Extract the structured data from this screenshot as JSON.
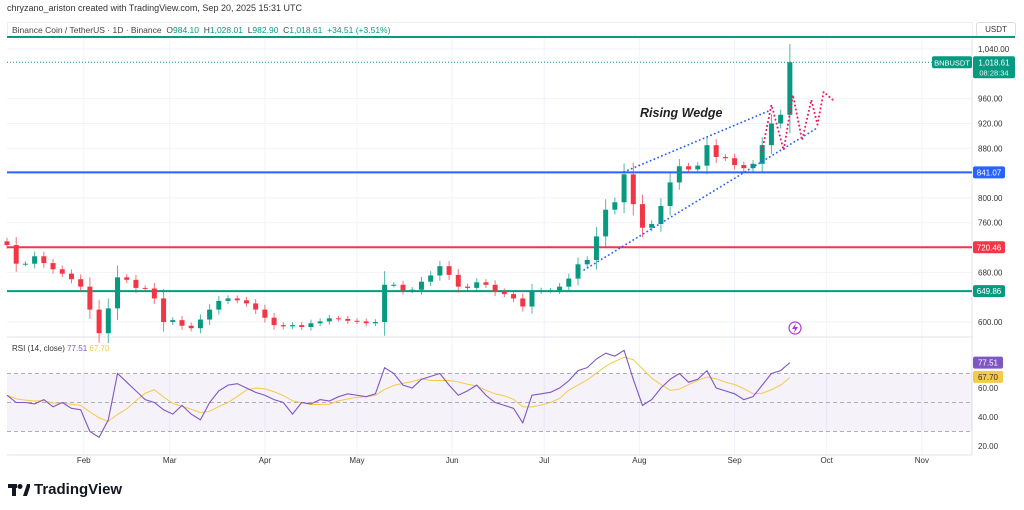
{
  "credit": "chryzano_ariston created with TradingView.com, Sep 20, 2025 15:31 UTC",
  "legend": {
    "symbol": "Binance Coin / TetherUS · 1D · Binance",
    "o_label": "O",
    "o": "984.10",
    "h_label": "H",
    "h": "1,028.01",
    "l_label": "L",
    "l": "982.90",
    "c_label": "C",
    "c": "1,018.61",
    "change": "+34.51 (+3.51%)"
  },
  "currency": "USDT",
  "ticker_tag": "BNBUSDT",
  "last_price": "1,018.61",
  "countdown": "08:28:34",
  "logo": "TradingView",
  "colors": {
    "up": "#089981",
    "down": "#f23645",
    "blue": "#2962ff",
    "rsi": "#7e57c2",
    "rsi_ma": "#f7c948",
    "projection": "#e91e63"
  },
  "chart_data": {
    "type": "candlestick",
    "interval": "1D",
    "start": "2025-01-07",
    "step_days": 3,
    "closes": [
      724,
      694,
      694,
      706,
      695,
      685,
      678,
      669,
      657,
      620,
      582,
      622,
      672,
      668,
      655,
      654,
      638,
      600,
      603,
      594,
      590,
      604,
      620,
      634,
      638,
      635,
      630,
      620,
      607,
      595,
      593,
      595,
      592,
      598,
      601,
      606,
      605,
      602,
      601,
      598,
      600,
      660,
      660,
      651,
      652,
      665,
      675,
      690,
      676,
      657,
      655,
      664,
      660,
      649,
      645,
      638,
      625,
      650,
      651,
      651,
      657,
      670,
      693,
      700,
      738,
      781,
      793,
      838,
      790,
      752,
      758,
      787,
      825,
      851,
      846,
      852,
      885,
      866,
      864,
      853,
      848,
      855,
      885,
      920,
      934,
      1018.61
    ],
    "y_ticks": [
      "1,040.00",
      "960.00",
      "920.00",
      "880.00",
      "800.00",
      "760.00",
      "680.00",
      "600.00"
    ],
    "y_tick_values": [
      1040,
      960,
      920,
      880,
      800,
      760,
      680,
      600
    ],
    "x_ticks": [
      {
        "label": "Feb",
        "date": "2025-02-01"
      },
      {
        "label": "Mar",
        "date": "2025-03-01"
      },
      {
        "label": "Apr",
        "date": "2025-04-01"
      },
      {
        "label": "May",
        "date": "2025-05-01"
      },
      {
        "label": "Jun",
        "date": "2025-06-01"
      },
      {
        "label": "Jul",
        "date": "2025-07-01"
      },
      {
        "label": "Aug",
        "date": "2025-08-01"
      },
      {
        "label": "Sep",
        "date": "2025-09-01"
      },
      {
        "label": "Oct",
        "date": "2025-10-01"
      },
      {
        "label": "Nov",
        "date": "2025-11-01"
      }
    ],
    "levels": [
      {
        "value": 841.07,
        "label": "841.07",
        "color": "#2962ff"
      },
      {
        "value": 720.46,
        "label": "720.46",
        "color": "#f23645"
      },
      {
        "value": 649.86,
        "label": "649.86",
        "color": "#089981"
      }
    ],
    "pattern_label": "Rising Wedge",
    "wedge": [
      [
        [
          "2025-07-27",
          842
        ],
        [
          "2025-09-13",
          942
        ]
      ],
      [
        [
          "2025-07-14",
          684
        ],
        [
          "2025-09-28",
          913
        ]
      ]
    ],
    "projection": [
      [
        "2025-09-10",
        877
      ],
      [
        "2025-09-13",
        950
      ],
      [
        "2025-09-17",
        877
      ],
      [
        "2025-09-20",
        966
      ],
      [
        "2025-09-23",
        893
      ],
      [
        "2025-09-26",
        958
      ],
      [
        "2025-09-28",
        918
      ],
      [
        "2025-09-30",
        971
      ],
      [
        "2025-10-03",
        958
      ]
    ],
    "rsi": {
      "label": "RSI (14, close)",
      "value": "77.51",
      "ma_value": "67.70",
      "values": [
        55,
        50,
        50,
        49,
        52,
        47,
        50,
        46,
        45,
        30,
        26,
        38,
        70,
        64,
        58,
        52,
        50,
        45,
        42,
        48,
        42,
        38,
        50,
        58,
        62,
        63,
        60,
        57,
        55,
        52,
        50,
        42,
        50,
        49,
        52,
        51,
        54,
        56,
        55,
        54,
        56,
        74,
        70,
        62,
        60,
        66,
        68,
        70,
        62,
        55,
        58,
        62,
        55,
        50,
        48,
        46,
        36,
        55,
        56,
        57,
        60,
        65,
        72,
        74,
        80,
        84,
        82,
        86,
        66,
        48,
        52,
        60,
        66,
        70,
        64,
        66,
        72,
        60,
        58,
        56,
        52,
        54,
        62,
        70,
        72,
        77.51
      ],
      "y_ticks": [
        "60.00",
        "40.00",
        "20.00"
      ],
      "y_tick_values": [
        60,
        40,
        20
      ],
      "bands": [
        70,
        50,
        30
      ]
    }
  }
}
